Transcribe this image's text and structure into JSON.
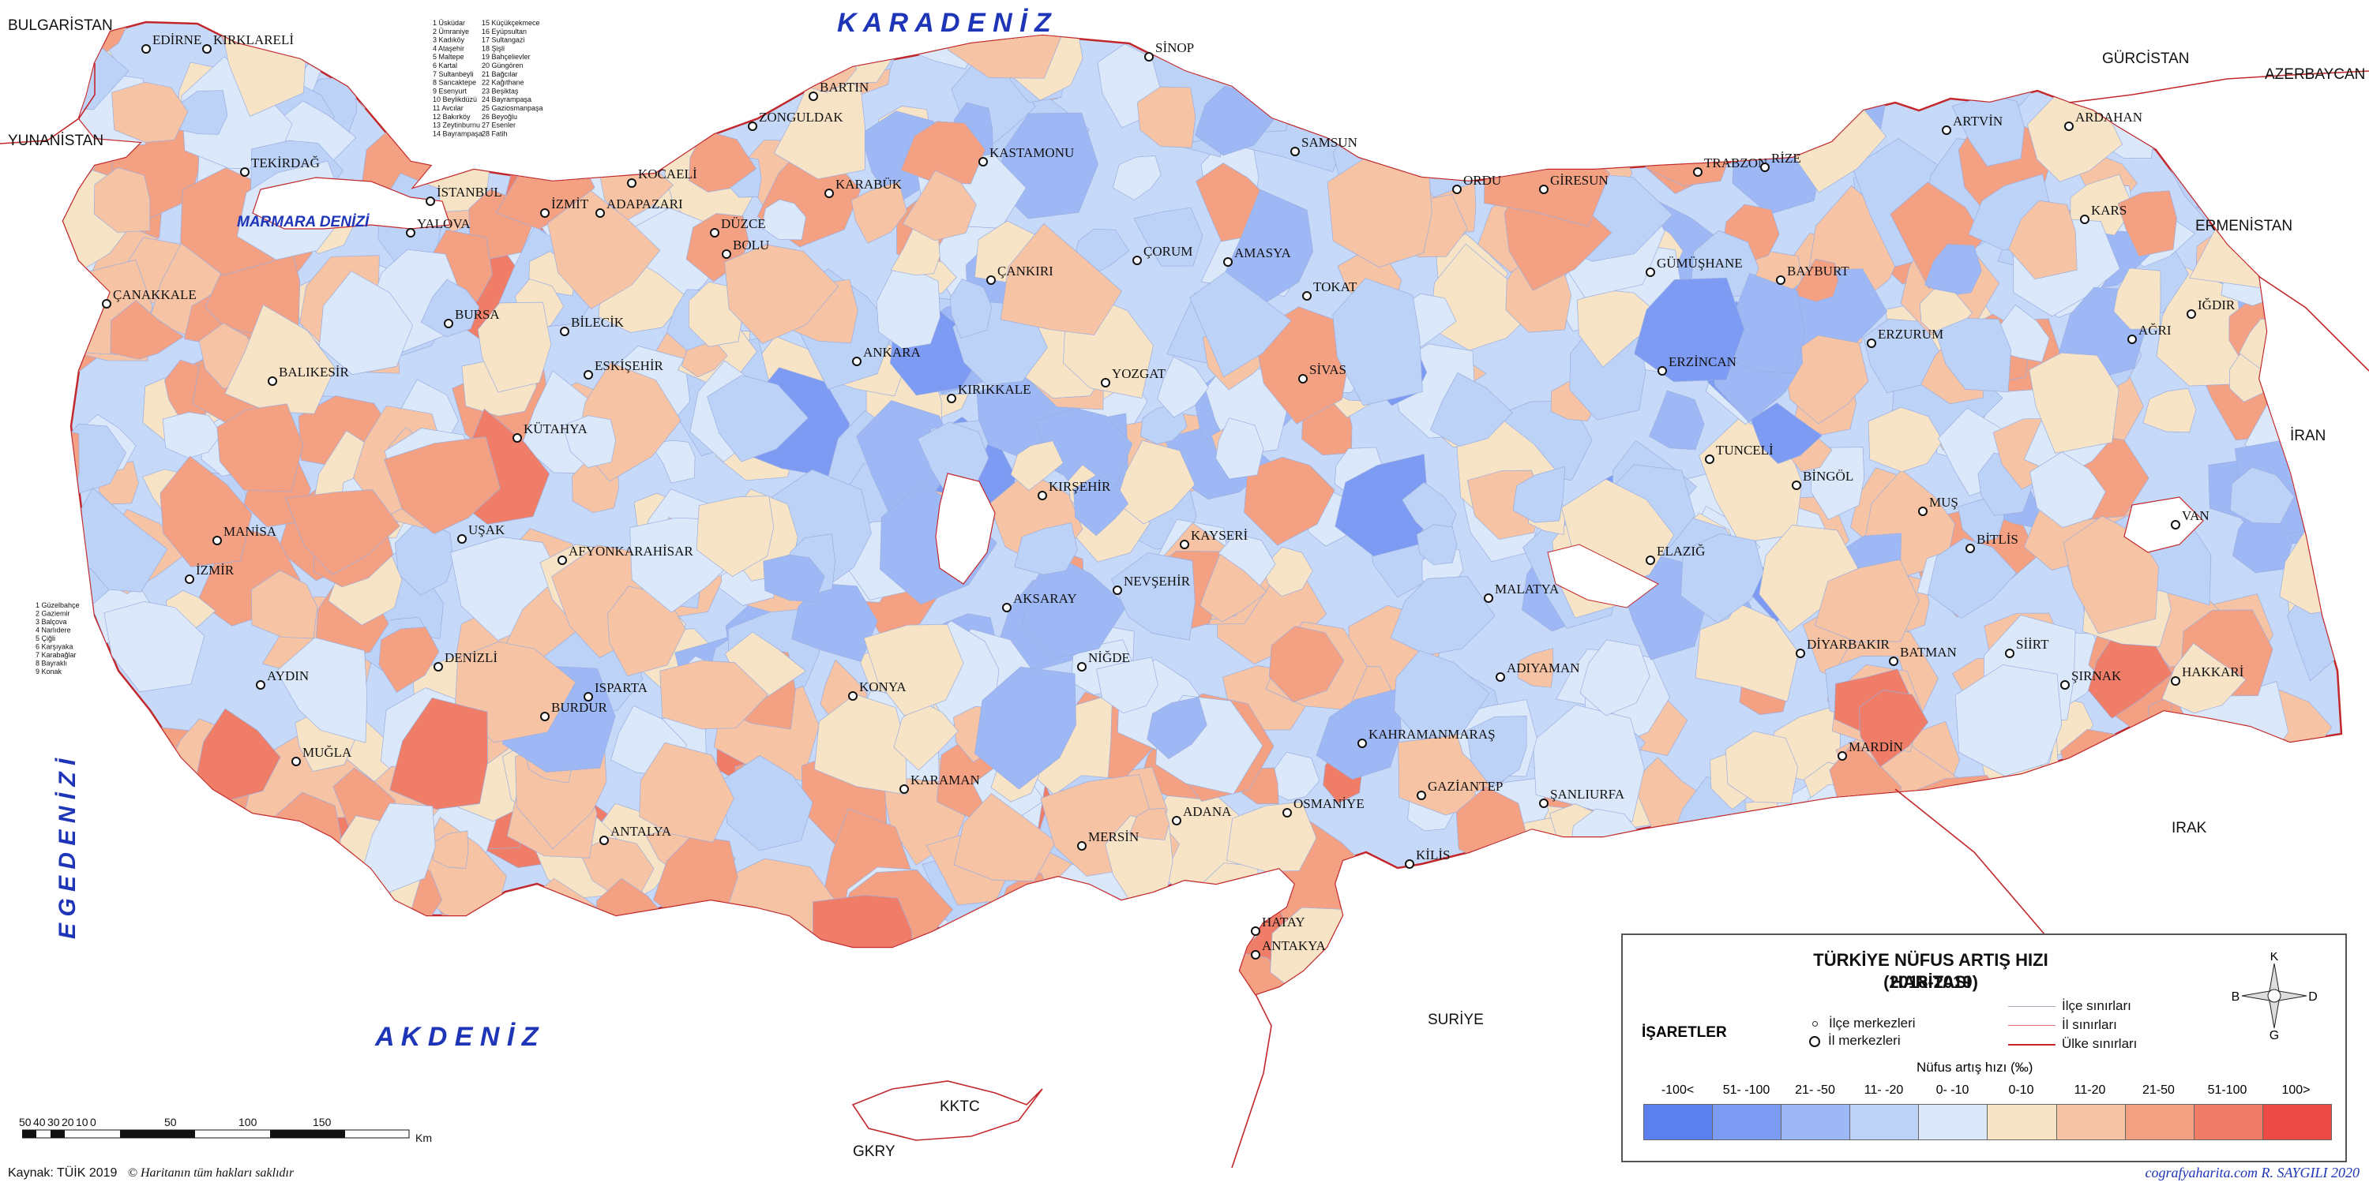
{
  "map": {
    "seas": {
      "black_sea": "K A R A D E N İ Z",
      "mediterranean": "A K D E N İ Z",
      "aegean": "E G E  D E N İ Z İ",
      "marmara": "MARMARA DENİZİ"
    },
    "countries": {
      "bulgaria": "BULGARİSTAN",
      "greece": "YUNANİSTAN",
      "georgia": "GÜRCİSTAN",
      "azerbaijan": "AZERBAYCAN",
      "armenia": "ERMENİSTAN",
      "iran": "İRAN",
      "iraq": "IRAK",
      "syria": "SURİYE",
      "kktc": "KKTC",
      "cyprus": "GKRY"
    },
    "provinces": [
      "EDİRNE",
      "KIRKLARELİ",
      "TEKİRDAĞ",
      "İSTANBUL",
      "YALOVA",
      "KOCAELİ",
      "İZMİT",
      "ADAPAZARI",
      "DÜZCE",
      "BOLU",
      "ZONGULDAK",
      "BARTIN",
      "KARABÜK",
      "KASTAMONU",
      "SİNOP",
      "SAMSUN",
      "ORDU",
      "GİRESUN",
      "TRABZON",
      "RİZE",
      "ARTVİN",
      "ARDAHAN",
      "KARS",
      "IĞDIR",
      "AĞRI",
      "ERZURUM",
      "BAYBURT",
      "GÜMÜŞHANE",
      "ERZİNCAN",
      "TOKAT",
      "AMASYA",
      "ÇORUM",
      "ÇANKIRI",
      "ANKARA",
      "KIRIKKALE",
      "YOZGAT",
      "SİVAS",
      "KIRŞEHİR",
      "NEVŞEHİR",
      "KAYSERİ",
      "AKSARAY",
      "NİĞDE",
      "KONYA",
      "KARAMAN",
      "MERSİN",
      "ADANA",
      "OSMANİYE",
      "HATAY",
      "ANTAKYA",
      "KİLİS",
      "GAZİANTEP",
      "ŞANLIURFA",
      "KAHRAMANMARAŞ",
      "ADIYAMAN",
      "MALATYA",
      "ELAZIĞ",
      "TUNCELİ",
      "BİNGÖL",
      "MUŞ",
      "VAN",
      "BİTLİS",
      "SİİRT",
      "BATMAN",
      "DİYARBAKIR",
      "MARDİN",
      "ŞIRNAK",
      "HAKKARİ",
      "ÇANAKKALE",
      "BALIKESİR",
      "BURSA",
      "BİLECİK",
      "ESKİŞEHİR",
      "KÜTAHYA",
      "MANİSA",
      "İZMİR",
      "UŞAK",
      "AFYONKARAHİSAR",
      "DENİZLİ",
      "AYDIN",
      "MUĞLA",
      "BURDUR",
      "ISPARTA",
      "ANTALYA"
    ],
    "istanbul_districts_list": [
      "1 Üsküdar",
      "2 Ümraniye",
      "3 Kadıköy",
      "4 Ataşehir",
      "5 Maltepe",
      "6 Kartal",
      "7 Sultanbeyli",
      "8 Sancaktepe",
      "9 Esenyurt",
      "10 Beylikdüzü",
      "11 Avcılar",
      "12 Bakırköy",
      "13 Zeytinburnu",
      "14 Bayrampaşa",
      "15 Küçükçekmece",
      "16 Eyüpsultan",
      "17 Sultangazi",
      "18 Şişli",
      "19 Bahçelievler",
      "20 Güngören",
      "21 Bağcılar",
      "22 Kağıthane",
      "23 Beşiktaş",
      "24 Bayrampaşa",
      "25 Gaziosmanpaşa",
      "26 Beyoğlu",
      "27 Esenler",
      "28 Fatih"
    ],
    "izmir_districts_list": [
      "1 Güzelbahçe",
      "2 Gaziemir",
      "3 Balçova",
      "4 Narlıdere",
      "5 Çiğli",
      "6 Karşıyaka",
      "7 Karabağlar",
      "8 Bayraklı",
      "9 Konak"
    ]
  },
  "legend": {
    "title": "TÜRKİYE NÜFUS ARTIŞ HIZI  HARİTASI",
    "subtitle": "(2018-2019)",
    "marks_title": "İŞARETLER",
    "district_centers": "İlçe merkezleri",
    "province_centers": "İl merkezleri",
    "district_borders": "İlçe sınırları",
    "province_borders": "İl sınırları",
    "country_borders": "Ülke sınırları",
    "rate_title": "Nüfus artış hızı (‰)",
    "compass": {
      "n": "K",
      "s": "G",
      "e": "D",
      "w": "B"
    },
    "classes": [
      {
        "label": "-100<",
        "color": "#5b7fef"
      },
      {
        "label": "51- -100",
        "color": "#7d9bf2"
      },
      {
        "label": "21- -50",
        "color": "#9eb8f5"
      },
      {
        "label": "11- -20",
        "color": "#bdd2f7"
      },
      {
        "label": "0- -10",
        "color": "#dbe8fa"
      },
      {
        "label": "0-10",
        "color": "#f7e3c5"
      },
      {
        "label": "11-20",
        "color": "#f6c3a4"
      },
      {
        "label": "21-50",
        "color": "#f3a083"
      },
      {
        "label": "51-100",
        "color": "#ef7d68"
      },
      {
        "label": "100>",
        "color": "#ee4a45"
      }
    ]
  },
  "scale_bar": {
    "ticks": [
      "50",
      "40",
      "30",
      "20",
      "10",
      "0",
      "50",
      "100",
      "150"
    ],
    "unit": "Km"
  },
  "footer": {
    "source": "Kaynak: TÜİK 2019",
    "copyright": "© Haritanın tüm hakları saklıdır",
    "credit": "cografyaharita.com  R. SAYGILI 2020"
  }
}
